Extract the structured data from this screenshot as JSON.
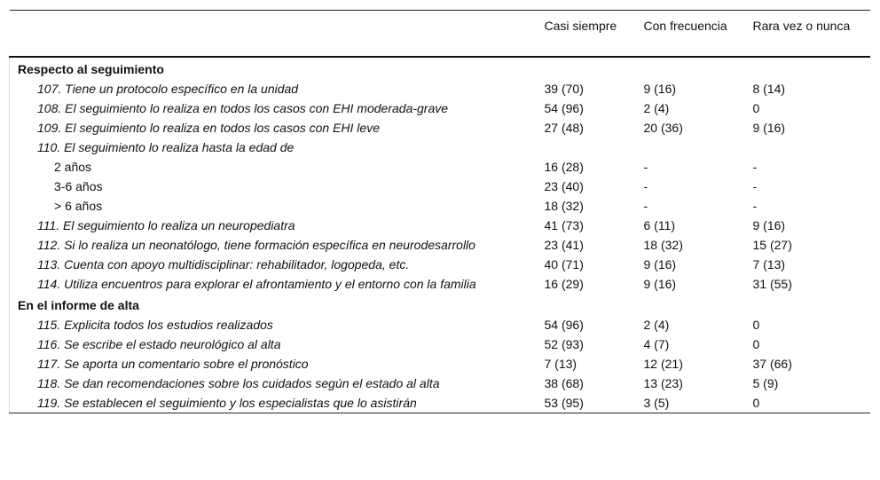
{
  "header": {
    "col0": "",
    "col1": "Casi siempre",
    "col2": "Con frecuencia",
    "col3": "Rara vez o nunca"
  },
  "rows": [
    {
      "type": "section",
      "label": "Respecto al seguimiento"
    },
    {
      "type": "item",
      "label": "107. Tiene un protocolo específico en la unidad",
      "values": [
        "39 (70)",
        "9 (16)",
        "8 (14)"
      ]
    },
    {
      "type": "item",
      "label": "108. El seguimiento lo realiza en todos los casos con EHI moderada-grave",
      "values": [
        "54 (96)",
        "2 (4)",
        "0"
      ]
    },
    {
      "type": "item",
      "label": "109. El seguimiento lo realiza en todos los casos con EHI leve",
      "values": [
        "27 (48)",
        "20 (36)",
        "9 (16)"
      ]
    },
    {
      "type": "item",
      "label": "110. El seguimiento lo realiza hasta la edad de",
      "values": [
        "",
        "",
        ""
      ]
    },
    {
      "type": "sub",
      "label": "2 años",
      "values": [
        "16 (28)",
        "-",
        "-"
      ]
    },
    {
      "type": "sub",
      "label": "3-6 años",
      "values": [
        "23 (40)",
        "-",
        "-"
      ]
    },
    {
      "type": "sub",
      "label": "> 6 años",
      "values": [
        "18 (32)",
        "-",
        "-"
      ]
    },
    {
      "type": "item",
      "label": "111. El seguimiento lo realiza un neuropediatra",
      "values": [
        "41 (73)",
        "6 (11)",
        "9 (16)"
      ]
    },
    {
      "type": "item",
      "label": "112. Si lo realiza un neonatólogo, tiene formación específica en neurodesarrollo",
      "values": [
        "23 (41)",
        "18 (32)",
        "15 (27)"
      ]
    },
    {
      "type": "item",
      "label": "113. Cuenta con apoyo multidisciplinar: rehabilitador, logopeda, etc.",
      "values": [
        "40 (71)",
        "9 (16)",
        "7 (13)"
      ]
    },
    {
      "type": "item",
      "label": "114. Utiliza encuentros para explorar el afrontamiento y el entorno con la familia",
      "values": [
        "16 (29)",
        "9 (16)",
        "31 (55)"
      ]
    },
    {
      "type": "section",
      "label": "En el informe de alta"
    },
    {
      "type": "item",
      "label": "115. Explicita todos los estudios realizados",
      "values": [
        "54 (96)",
        "2 (4)",
        "0"
      ]
    },
    {
      "type": "item",
      "label": "116. Se escribe el estado neurológico al alta",
      "values": [
        "52 (93)",
        "4 (7)",
        "0"
      ]
    },
    {
      "type": "item",
      "label": "117. Se aporta un comentario sobre el pronóstico",
      "values": [
        "7 (13)",
        "12 (21)",
        "37 (66)"
      ]
    },
    {
      "type": "item",
      "label": "118. Se dan recomendaciones sobre los cuidados según el estado al alta",
      "values": [
        "38 (68)",
        "13 (23)",
        "5 (9)"
      ]
    },
    {
      "type": "item",
      "label": "119. Se establecen el seguimiento y los especialistas que lo asistirán",
      "values": [
        "53 (95)",
        "3 (5)",
        "0"
      ]
    }
  ]
}
